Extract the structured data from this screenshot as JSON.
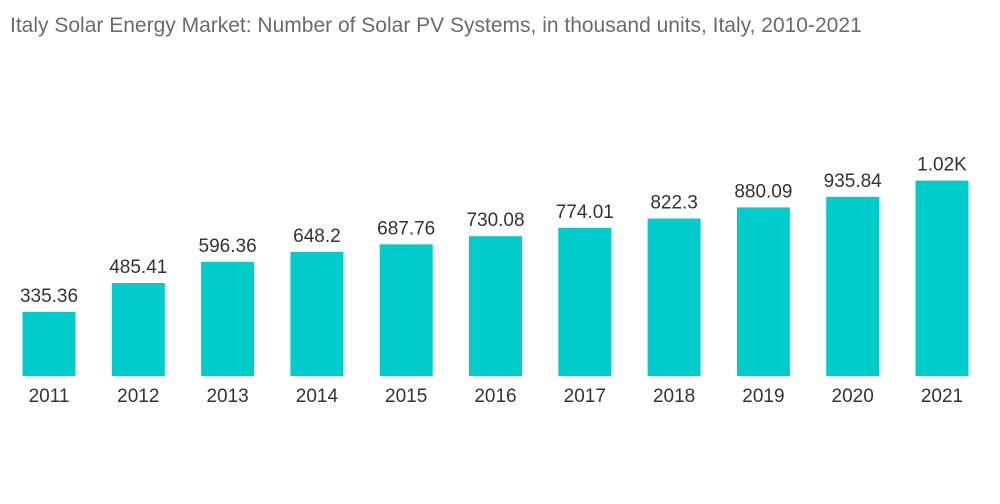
{
  "chart_data": {
    "type": "bar",
    "title": "Italy Solar Energy Market: Number of Solar PV Systems, in thousand units, Italy, 2010-2021",
    "categories": [
      "2011",
      "2012",
      "2013",
      "2014",
      "2015",
      "2016",
      "2017",
      "2018",
      "2019",
      "2020",
      "2021"
    ],
    "values": [
      335.36,
      485.41,
      596.36,
      648.2,
      687.76,
      730.08,
      774.01,
      822.3,
      880.09,
      935.84,
      1020
    ],
    "data_labels": [
      "335.36",
      "485.41",
      "596.36",
      "648.2",
      "687.76",
      "730.08",
      "774.01",
      "822.3",
      "880.09",
      "935.84",
      "1.02K"
    ],
    "xlabel": "",
    "ylabel": "",
    "ylim": [
      0,
      1180
    ],
    "grid": false,
    "legend": "none",
    "bar_color": "#00CCCC",
    "label_color": "#333333",
    "axis_label_color": "#333333",
    "title_color": "#6b6b6b"
  }
}
